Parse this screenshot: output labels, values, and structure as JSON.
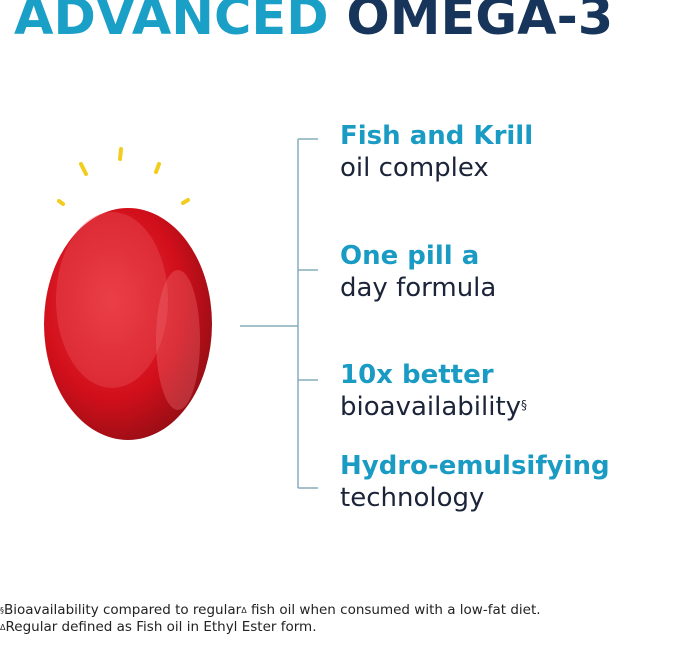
{
  "header": {
    "title_part1": "ADVANCED",
    "title_part2": "OMEGA-3"
  },
  "colors": {
    "accent": "#1a9fc7",
    "navy": "#17345a",
    "pill": "#d4101c",
    "sparks": "#f2cd1e",
    "bracket": "#86aebb"
  },
  "illustration": {
    "icon": "red-softgel-capsule-icon",
    "sparks_icon": "shine-sparks-icon"
  },
  "features": [
    {
      "bold": "Fish and Krill",
      "text": "oil complex",
      "mark": ""
    },
    {
      "bold": "One pill a",
      "text": "day formula",
      "mark": ""
    },
    {
      "bold": "10x better",
      "text": "bioavailability",
      "mark": "§"
    },
    {
      "bold": "Hydro-emulsifying",
      "text": "technology",
      "mark": ""
    }
  ],
  "footnotes": [
    {
      "mark": "§",
      "text_a": "Bioavailability compared to regular",
      "inner_mark": "Δ",
      "text_b": " fish oil when consumed with a low-fat diet."
    },
    {
      "mark": "Δ",
      "text_a": "Regular defined as Fish oil in Ethyl Ester form."
    }
  ]
}
